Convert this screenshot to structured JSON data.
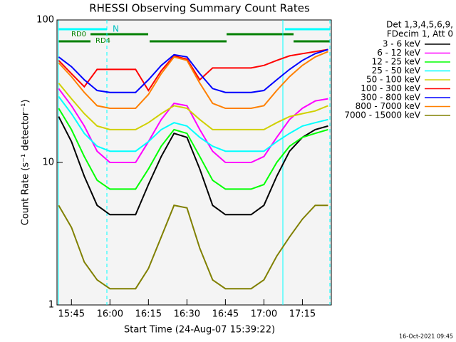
{
  "chart_data": {
    "type": "line",
    "title": "RHESSI Observing Summary Count Rates",
    "x_label": "Start Time (24-Aug-07 15:39:22)",
    "y_label": "Count Rate (s⁻¹ detector⁻¹)",
    "legend_header": [
      "Det 1,3,4,5,6,9,",
      "FDecim 1, Att 0"
    ],
    "footer": "16-Oct-2021 09:45",
    "annotations": [
      "N",
      "RD0",
      "RD4"
    ],
    "log_y": true,
    "x": [
      "15:40",
      "15:45",
      "15:50",
      "15:55",
      "16:00",
      "16:05",
      "16:10",
      "16:15",
      "16:20",
      "16:25",
      "16:30",
      "16:35",
      "16:40",
      "16:45",
      "16:50",
      "16:55",
      "17:00",
      "17:05",
      "17:10",
      "17:15",
      "17:20",
      "17:25"
    ],
    "xlim": [
      "15:39:22",
      "17:26:16"
    ],
    "xticks": [
      "15:45",
      "16:00",
      "16:15",
      "16:30",
      "16:45",
      "17:00",
      "17:15"
    ],
    "ylim": [
      1,
      100
    ],
    "yticks": [
      1,
      10,
      100
    ],
    "series": [
      {
        "name": "3 - 6 keV",
        "color": "#000000",
        "values": [
          21,
          14,
          8,
          5,
          4.3,
          4.3,
          4.3,
          7,
          11,
          16,
          15,
          9,
          5,
          4.3,
          4.3,
          4.3,
          5,
          8,
          12,
          15,
          17,
          18
        ]
      },
      {
        "name": "6 - 12 keV",
        "color": "#ff00ff",
        "values": [
          33,
          25,
          18,
          12,
          10,
          10,
          10,
          14,
          20,
          26,
          25,
          17,
          12,
          10,
          10,
          10,
          11,
          15,
          20,
          24,
          27,
          28
        ]
      },
      {
        "name": "12 - 25 keV",
        "color": "#00ff00",
        "values": [
          24,
          17,
          11,
          7.5,
          6.5,
          6.5,
          6.5,
          9,
          13,
          17,
          16,
          11,
          7.5,
          6.5,
          6.5,
          6.5,
          7,
          10,
          13,
          15,
          16,
          17
        ]
      },
      {
        "name": "25 - 50 keV",
        "color": "#00ffff",
        "values": [
          29,
          22,
          16,
          13,
          12,
          12,
          12,
          14,
          17,
          19,
          18,
          15,
          13,
          12,
          12,
          12,
          12,
          14,
          16,
          18,
          19,
          20
        ]
      },
      {
        "name": "50 - 100 keV",
        "color": "#d0d000",
        "values": [
          36,
          28,
          22,
          18,
          17,
          17,
          17,
          19,
          22,
          25,
          24,
          20,
          17,
          17,
          17,
          17,
          17,
          19,
          21,
          22,
          23,
          25
        ]
      },
      {
        "name": "100 - 300 keV",
        "color": "#ff0000",
        "values": [
          52,
          42,
          34,
          45,
          45,
          45,
          45,
          32,
          44,
          56,
          53,
          38,
          46,
          46,
          46,
          46,
          48,
          52,
          56,
          58,
          60,
          62
        ]
      },
      {
        "name": "300 - 800 keV",
        "color": "#0000ff",
        "values": [
          55,
          47,
          38,
          32,
          31,
          31,
          31,
          38,
          48,
          57,
          55,
          42,
          33,
          31,
          31,
          31,
          32,
          38,
          45,
          52,
          58,
          62
        ]
      },
      {
        "name": "800 - 7000 keV",
        "color": "#ff8000",
        "values": [
          50,
          40,
          31,
          25,
          24,
          24,
          24,
          30,
          42,
          55,
          52,
          36,
          26,
          24,
          24,
          24,
          25,
          32,
          40,
          48,
          55,
          60
        ]
      },
      {
        "name": "7000 - 15000 keV",
        "color": "#808000",
        "values": [
          5,
          3.5,
          2,
          1.5,
          1.3,
          1.3,
          1.3,
          1.8,
          3,
          5,
          4.8,
          2.5,
          1.5,
          1.3,
          1.3,
          1.3,
          1.5,
          2.2,
          3,
          4,
          5,
          5
        ]
      }
    ]
  }
}
